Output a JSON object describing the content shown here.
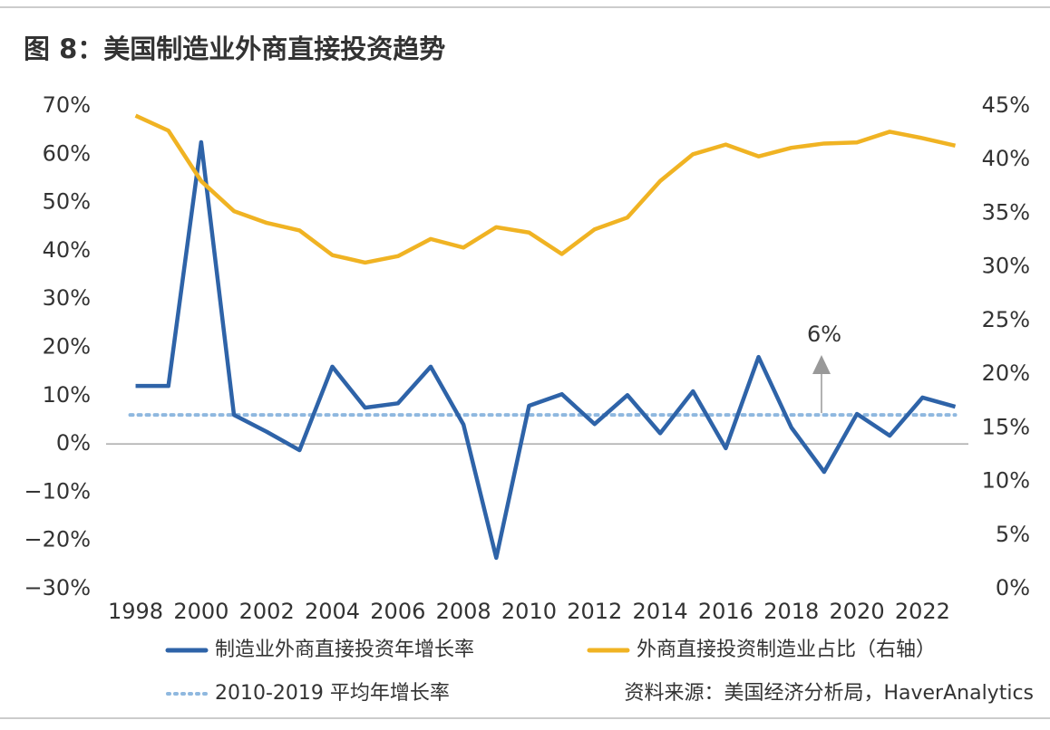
{
  "chart_data": {
    "type": "line",
    "title": "图 8：美国制造业外商直接投资趋势",
    "x": [
      1998,
      1999,
      2000,
      2001,
      2002,
      2003,
      2004,
      2005,
      2006,
      2007,
      2008,
      2009,
      2010,
      2011,
      2012,
      2013,
      2014,
      2015,
      2016,
      2017,
      2018,
      2019,
      2020,
      2021,
      2022,
      2023
    ],
    "xlim": [
      1997.1,
      2023.4
    ],
    "xticks": [
      1998,
      2000,
      2002,
      2004,
      2006,
      2008,
      2010,
      2012,
      2014,
      2016,
      2018,
      2020,
      2022
    ],
    "ylim": [
      -30,
      70
    ],
    "yticks": [
      {
        "value": -30,
        "label": "−30%"
      },
      {
        "value": -20,
        "label": "−20%"
      },
      {
        "value": -10,
        "label": "−10%"
      },
      {
        "value": 0,
        "label": "0%"
      },
      {
        "value": 10,
        "label": "10%"
      },
      {
        "value": 20,
        "label": "20%"
      },
      {
        "value": 30,
        "label": "30%"
      },
      {
        "value": 40,
        "label": "40%"
      },
      {
        "value": 50,
        "label": "50%"
      },
      {
        "value": 60,
        "label": "60%"
      },
      {
        "value": 70,
        "label": "70%"
      }
    ],
    "y2lim": [
      0,
      45
    ],
    "y2ticks": [
      {
        "value": 0,
        "label": "0%"
      },
      {
        "value": 5,
        "label": "5%"
      },
      {
        "value": 10,
        "label": "10%"
      },
      {
        "value": 15,
        "label": "15%"
      },
      {
        "value": 20,
        "label": "20%"
      },
      {
        "value": 25,
        "label": "25%"
      },
      {
        "value": 30,
        "label": "30%"
      },
      {
        "value": 35,
        "label": "35%"
      },
      {
        "value": 40,
        "label": "40%"
      },
      {
        "value": 45,
        "label": "45%"
      }
    ],
    "series": [
      {
        "name": "制造业外商直接投资年增长率",
        "color": "#2e63a8",
        "values": [
          12,
          12,
          62.5,
          6,
          2.5,
          -1.3,
          16,
          7.5,
          8.4,
          16,
          4,
          -23.6,
          7.9,
          10.3,
          4.1,
          10.1,
          2.2,
          10.9,
          -0.9,
          18,
          3.4,
          -5.8,
          6.2,
          1.7,
          9.6,
          7.7
        ]
      },
      {
        "name": "外商直接投资制造业占比（右轴）",
        "color": "#f0b323",
        "axis": "y2",
        "values": [
          44.1,
          42.7,
          38,
          35.2,
          34.1,
          33.4,
          31.1,
          30.4,
          31,
          32.6,
          31.8,
          33.7,
          33.2,
          31.2,
          33.5,
          34.6,
          38,
          40.5,
          41.4,
          40.3,
          41.1,
          41.5,
          41.6,
          42.6,
          42,
          41.3
        ]
      }
    ],
    "reference": {
      "name": "2010-2019 平均年增长率",
      "value": 6,
      "color": "#8fb8df",
      "label": "6%"
    },
    "source": "资料来源：美国经济分析局，HaverAnalytics"
  }
}
